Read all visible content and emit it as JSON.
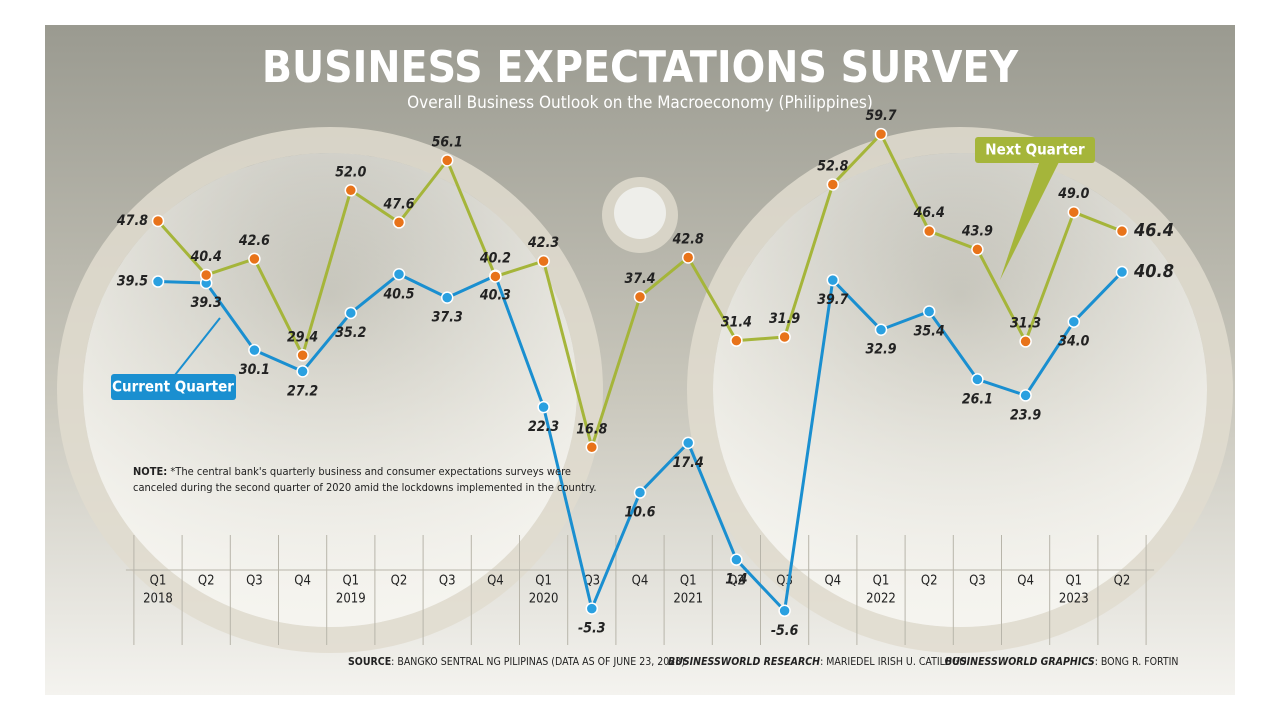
{
  "chart_data": {
    "type": "line",
    "title": "BUSINESS EXPECTATIONS SURVEY",
    "subtitle": "Overall Business Outlook on the Macroeconomy (Philippines)",
    "categories": [
      [
        "Q1",
        "2018"
      ],
      [
        "Q2"
      ],
      [
        "Q3"
      ],
      [
        "Q4"
      ],
      [
        "Q1",
        "2019"
      ],
      [
        "Q2"
      ],
      [
        "Q3"
      ],
      [
        "Q4"
      ],
      [
        "Q1",
        "2020"
      ],
      [
        "Q3"
      ],
      [
        "Q4"
      ],
      [
        "Q1",
        "2021"
      ],
      [
        "Q2"
      ],
      [
        "Q3"
      ],
      [
        "Q4"
      ],
      [
        "Q1",
        "2022"
      ],
      [
        "Q2"
      ],
      [
        "Q3"
      ],
      [
        "Q4"
      ],
      [
        "Q1",
        "2023"
      ],
      [
        "Q2"
      ]
    ],
    "ylim": [
      -7,
      63
    ],
    "series": [
      {
        "name": "Current Quarter",
        "color": "#1a8fd0",
        "marker_color": "#2aa0e0",
        "values": [
          39.5,
          39.3,
          30.1,
          27.2,
          35.2,
          40.5,
          37.3,
          40.3,
          22.3,
          -5.3,
          10.6,
          17.4,
          1.4,
          -5.6,
          39.7,
          32.9,
          35.4,
          26.1,
          23.9,
          34.0,
          40.8
        ],
        "value_labels": [
          "39.5",
          "39.3",
          "30.1",
          "27.2",
          "35.2",
          "40.5",
          "37.3",
          "40.3",
          "22.3",
          "-5.3",
          "10.6",
          "17.4",
          "1.4",
          "-5.6",
          "39.7",
          "32.9",
          "35.4",
          "26.1",
          "23.9",
          "34.0",
          "40.8"
        ]
      },
      {
        "name": "Next Quarter",
        "color": "#a5b53a",
        "marker_color": "#e8731a",
        "values": [
          47.8,
          40.4,
          42.6,
          29.4,
          52.0,
          47.6,
          56.1,
          40.2,
          42.3,
          16.8,
          37.4,
          42.8,
          31.4,
          31.9,
          52.8,
          59.7,
          46.4,
          43.9,
          31.3,
          49.0,
          46.4
        ],
        "value_labels": [
          "47.8",
          "40.4",
          "42.6",
          "29.4",
          "52.0",
          "47.6",
          "56.1",
          "40.2",
          "42.3",
          "16.8",
          "37.4",
          "42.8",
          "31.4",
          "31.9",
          "52.8",
          "59.7",
          "46.4",
          "43.9",
          "31.3",
          "49.0",
          "46.4"
        ]
      }
    ],
    "note_label": "NOTE:",
    "note": [
      "*The central bank's quarterly business and consumer expectations surveys were",
      "canceled during the second quarter of 2020 amid the lockdowns implemented in the country."
    ],
    "credits": [
      {
        "label": "SOURCE",
        "text": ": BANGKO SENTRAL NG PILIPINAS (DATA AS OF JUNE 23, 2023)"
      },
      {
        "label": "BUSINESSWORLD RESEARCH",
        "text": ": MARIEDEL IRISH U. CATILOGO"
      },
      {
        "label": "BUSINESSWORLD GRAPHICS",
        "text": ": BONG R. FORTIN"
      }
    ]
  }
}
